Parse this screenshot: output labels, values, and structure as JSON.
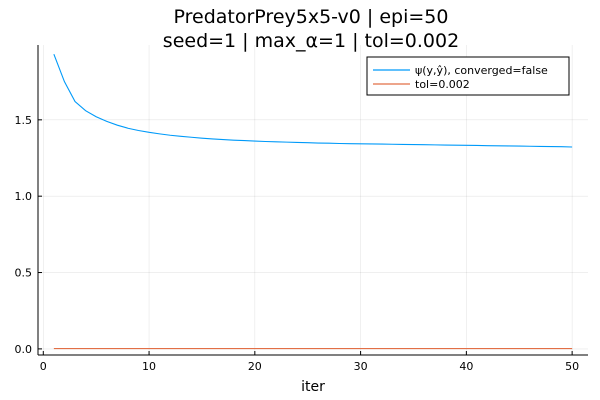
{
  "chart_data": {
    "type": "line",
    "title_line1": "PredatorPrey5x5-v0 | epi=50",
    "title_line2": "seed=1 | max_α=1 | tol=0.002",
    "xlabel": "iter",
    "ylabel": "",
    "xlim": [
      -0.5,
      51.5
    ],
    "ylim": [
      -0.04,
      1.99
    ],
    "xticks": [
      0,
      10,
      20,
      30,
      40,
      50
    ],
    "yticks": [
      0.0,
      0.5,
      1.0,
      1.5
    ],
    "xtick_labels": [
      "0",
      "10",
      "20",
      "30",
      "40",
      "50"
    ],
    "ytick_labels": [
      "0.0",
      "0.5",
      "1.0",
      "1.5"
    ],
    "grid": true,
    "legend_position": "top-right",
    "series": [
      {
        "name": "ψ(y,ŷ), converged=false",
        "color": "#009af9",
        "x": [
          1,
          2,
          3,
          4,
          5,
          6,
          7,
          8,
          9,
          10,
          11,
          12,
          13,
          14,
          15,
          16,
          17,
          18,
          19,
          20,
          21,
          22,
          23,
          24,
          25,
          26,
          27,
          28,
          29,
          30,
          31,
          32,
          33,
          34,
          35,
          36,
          37,
          38,
          39,
          40,
          41,
          42,
          43,
          44,
          45,
          46,
          47,
          48,
          49,
          50
        ],
        "y": [
          1.93,
          1.75,
          1.62,
          1.56,
          1.52,
          1.49,
          1.465,
          1.445,
          1.43,
          1.418,
          1.408,
          1.399,
          1.392,
          1.386,
          1.38,
          1.375,
          1.371,
          1.367,
          1.364,
          1.361,
          1.358,
          1.356,
          1.354,
          1.352,
          1.35,
          1.348,
          1.347,
          1.345,
          1.344,
          1.343,
          1.342,
          1.341,
          1.34,
          1.339,
          1.338,
          1.337,
          1.336,
          1.335,
          1.334,
          1.333,
          1.332,
          1.331,
          1.33,
          1.329,
          1.328,
          1.327,
          1.326,
          1.325,
          1.324,
          1.322
        ]
      },
      {
        "name": "tol=0.002",
        "color": "#e26f46",
        "x": [
          1,
          50
        ],
        "y": [
          0.002,
          0.002
        ]
      }
    ]
  }
}
